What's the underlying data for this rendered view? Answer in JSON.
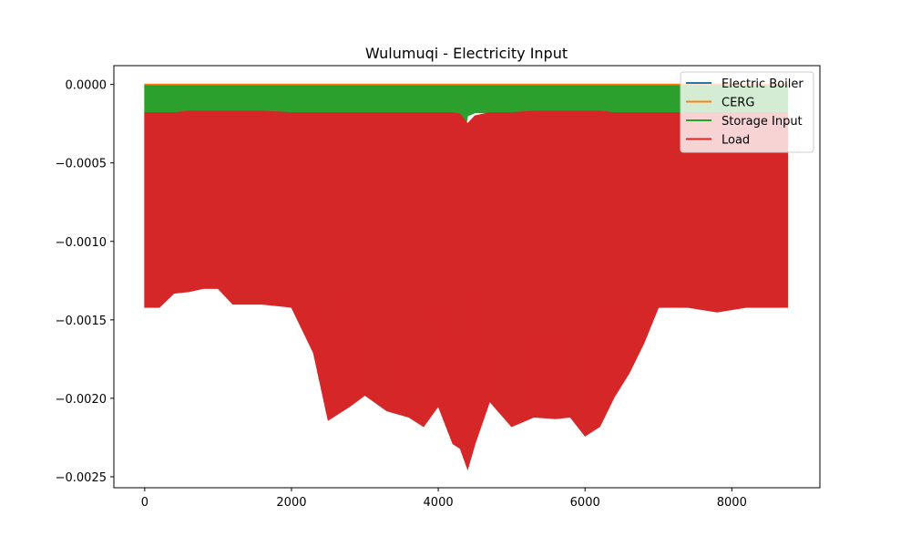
{
  "chart_data": {
    "type": "line",
    "title": "Wulumuqi - Electricity Input",
    "xlabel": "",
    "ylabel": "",
    "xlim": [
      -420,
      9200
    ],
    "ylim": [
      -0.00257,
      0.00012
    ],
    "x_ticks": [
      0,
      2000,
      4000,
      6000,
      8000
    ],
    "x_tick_labels": [
      "0",
      "2000",
      "4000",
      "6000",
      "8000"
    ],
    "y_ticks": [
      0.0,
      -0.0005,
      -0.001,
      -0.0015,
      -0.002,
      -0.0025
    ],
    "y_tick_labels": [
      "0.0000",
      "−0.0005",
      "−0.0010",
      "−0.0015",
      "−0.0020",
      "−0.0025"
    ],
    "grid": false,
    "legend_position": "upper right",
    "series": [
      {
        "name": "Electric Boiler",
        "color": "#1f77b4",
        "x": [
          0,
          8760
        ],
        "values": [
          0,
          0
        ]
      },
      {
        "name": "CERG",
        "color": "#ff7f0e",
        "x": [
          0,
          8760
        ],
        "values": [
          0,
          0
        ]
      },
      {
        "name": "Storage Input",
        "color": "#2ca02c",
        "x": [
          0,
          500,
          1200,
          1700,
          2300,
          3000,
          3600,
          4200,
          4380,
          4400,
          4500,
          5000,
          5600,
          6000,
          6500,
          7000,
          7600,
          8200,
          8760
        ],
        "values": [
          -0.00018,
          -0.00018,
          -0.00017,
          -0.00018,
          -0.00018,
          -0.00018,
          -0.00018,
          -0.00018,
          -0.00025,
          -0.0002,
          -0.00018,
          -0.00018,
          -0.00017,
          -0.00018,
          -0.00018,
          -0.00018,
          -0.00018,
          -0.00018,
          -0.00018
        ]
      },
      {
        "name": "Load",
        "color": "#d62728",
        "x": [
          0,
          200,
          400,
          600,
          800,
          1000,
          1200,
          1600,
          2000,
          2300,
          2500,
          2800,
          3000,
          3300,
          3600,
          3800,
          4000,
          4200,
          4300,
          4400,
          4500,
          4700,
          5000,
          5300,
          5600,
          5800,
          6000,
          6200,
          6400,
          6600,
          6800,
          7000,
          7400,
          7800,
          8200,
          8500,
          8760
        ],
        "max": [
          -0.00018,
          -0.00018,
          -0.00018,
          -0.00017,
          -0.00017,
          -0.00017,
          -0.00017,
          -0.00017,
          -0.00018,
          -0.00018,
          -0.00018,
          -0.00018,
          -0.00018,
          -0.00018,
          -0.00018,
          -0.00018,
          -0.00018,
          -0.00018,
          -0.00019,
          -0.00025,
          -0.0002,
          -0.00018,
          -0.00018,
          -0.00017,
          -0.00017,
          -0.00017,
          -0.00017,
          -0.00017,
          -0.00018,
          -0.00018,
          -0.00018,
          -0.00018,
          -0.00018,
          -0.00018,
          -0.00018,
          -0.00018,
          -0.00018
        ],
        "min": [
          -0.00142,
          -0.00142,
          -0.00133,
          -0.00132,
          -0.0013,
          -0.0013,
          -0.0014,
          -0.0014,
          -0.00142,
          -0.00171,
          -0.00214,
          -0.00205,
          -0.00198,
          -0.00208,
          -0.00212,
          -0.00218,
          -0.00205,
          -0.00229,
          -0.00232,
          -0.00245,
          -0.00229,
          -0.00202,
          -0.00218,
          -0.00212,
          -0.00213,
          -0.00212,
          -0.00224,
          -0.00218,
          -0.00199,
          -0.00184,
          -0.00165,
          -0.00142,
          -0.00142,
          -0.00145,
          -0.00142,
          -0.00142,
          -0.00142
        ]
      }
    ]
  }
}
